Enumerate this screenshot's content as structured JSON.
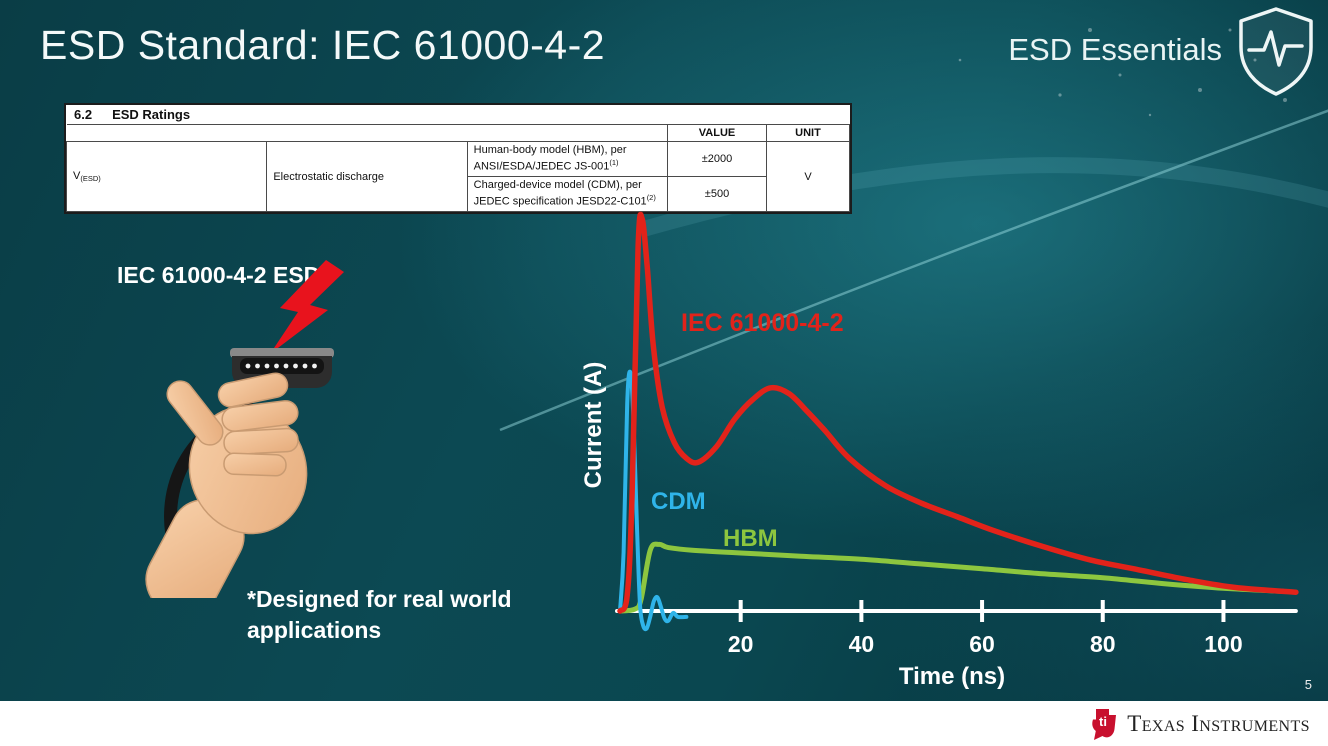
{
  "slide": {
    "title": "ESD Standard: IEC 61000-4-2",
    "brand": "ESD Essentials",
    "page_number": "5"
  },
  "ratings_table": {
    "section_number": "6.2",
    "section_title": "ESD Ratings",
    "col_value": "VALUE",
    "col_unit": "UNIT",
    "symbol_base": "V",
    "symbol_sub": "(ESD)",
    "parameter": "Electrostatic discharge",
    "rows": [
      {
        "description": "Human-body model (HBM), per ANSI/ESDA/JEDEC JS-001",
        "footnote": "(1)",
        "value": "±2000"
      },
      {
        "description": "Charged-device model (CDM), per JEDEC specification JESD22-C101",
        "footnote": "(2)",
        "value": "±500"
      }
    ],
    "unit": "V"
  },
  "left_panel": {
    "caption": "IEC 61000-4-2 ESD",
    "note_line1": "*Designed for real world",
    "note_line2": "applications"
  },
  "chart_data": {
    "type": "line",
    "title": "",
    "xlabel": "Time (ns)",
    "ylabel": "Current (A)",
    "xlim": [
      0,
      116
    ],
    "ylim": [
      -1.2,
      10.8
    ],
    "x_ticks": [
      20,
      40,
      60,
      80,
      100
    ],
    "grid": false,
    "legend_position": "inline-labels",
    "series": [
      {
        "name": "IEC 61000-4-2",
        "color": "#e2231a",
        "width": 5.5,
        "points": [
          [
            0,
            0
          ],
          [
            1.2,
            0.4
          ],
          [
            2,
            3
          ],
          [
            3,
            9.3
          ],
          [
            3.7,
            10
          ],
          [
            4.5,
            8.8
          ],
          [
            5.5,
            6.8
          ],
          [
            7,
            5.2
          ],
          [
            9,
            4.3
          ],
          [
            11,
            3.9
          ],
          [
            13,
            3.8
          ],
          [
            16,
            4.2
          ],
          [
            19,
            4.9
          ],
          [
            22,
            5.4
          ],
          [
            25,
            5.7
          ],
          [
            28,
            5.55
          ],
          [
            31,
            5.1
          ],
          [
            34,
            4.6
          ],
          [
            38,
            3.9
          ],
          [
            44,
            3.2
          ],
          [
            50,
            2.75
          ],
          [
            56,
            2.4
          ],
          [
            62,
            2.05
          ],
          [
            70,
            1.65
          ],
          [
            78,
            1.3
          ],
          [
            86,
            1.05
          ],
          [
            94,
            0.8
          ],
          [
            102,
            0.6
          ],
          [
            112,
            0.48
          ]
        ]
      },
      {
        "name": "CDM",
        "color": "#2fb4e9",
        "width": 4,
        "points": [
          [
            0,
            0
          ],
          [
            0.6,
            1.5
          ],
          [
            1.2,
            5.3
          ],
          [
            1.7,
            6.1
          ],
          [
            2.2,
            5.0
          ],
          [
            2.8,
            2.2
          ],
          [
            3.3,
            0.2
          ],
          [
            3.8,
            -0.35
          ],
          [
            4.4,
            -0.45
          ],
          [
            5,
            -0.15
          ],
          [
            5.6,
            0.25
          ],
          [
            6.2,
            0.35
          ],
          [
            6.8,
            0.1
          ],
          [
            7.4,
            -0.2
          ],
          [
            8,
            -0.25
          ],
          [
            8.8,
            -0.05
          ],
          [
            9.6,
            -0.15
          ],
          [
            11,
            -0.15
          ]
        ]
      },
      {
        "name": "HBM",
        "color": "#8dc63f",
        "width": 5,
        "points": [
          [
            0,
            0
          ],
          [
            2.5,
            0.05
          ],
          [
            3.5,
            0.3
          ],
          [
            5,
            1.55
          ],
          [
            6.5,
            1.7
          ],
          [
            8,
            1.62
          ],
          [
            12,
            1.55
          ],
          [
            20,
            1.48
          ],
          [
            30,
            1.4
          ],
          [
            40,
            1.32
          ],
          [
            50,
            1.2
          ],
          [
            60,
            1.08
          ],
          [
            70,
            0.95
          ],
          [
            80,
            0.85
          ],
          [
            90,
            0.7
          ],
          [
            100,
            0.58
          ],
          [
            110,
            0.5
          ]
        ]
      }
    ],
    "labels": [
      {
        "text": "IEC 61000-4-2",
        "color": "#e2231a"
      },
      {
        "text": "CDM",
        "color": "#2fb4e9"
      },
      {
        "text": "HBM",
        "color": "#8dc63f"
      }
    ]
  },
  "footer": {
    "logo_monogram": "ti",
    "logo_text": "Texas Instruments"
  },
  "colors": {
    "iec_red": "#e2231a",
    "cdm_blue": "#2fb4e9",
    "hbm_green": "#8dc63f",
    "ti_red": "#c8102e",
    "bolt_red": "#e8131d"
  }
}
